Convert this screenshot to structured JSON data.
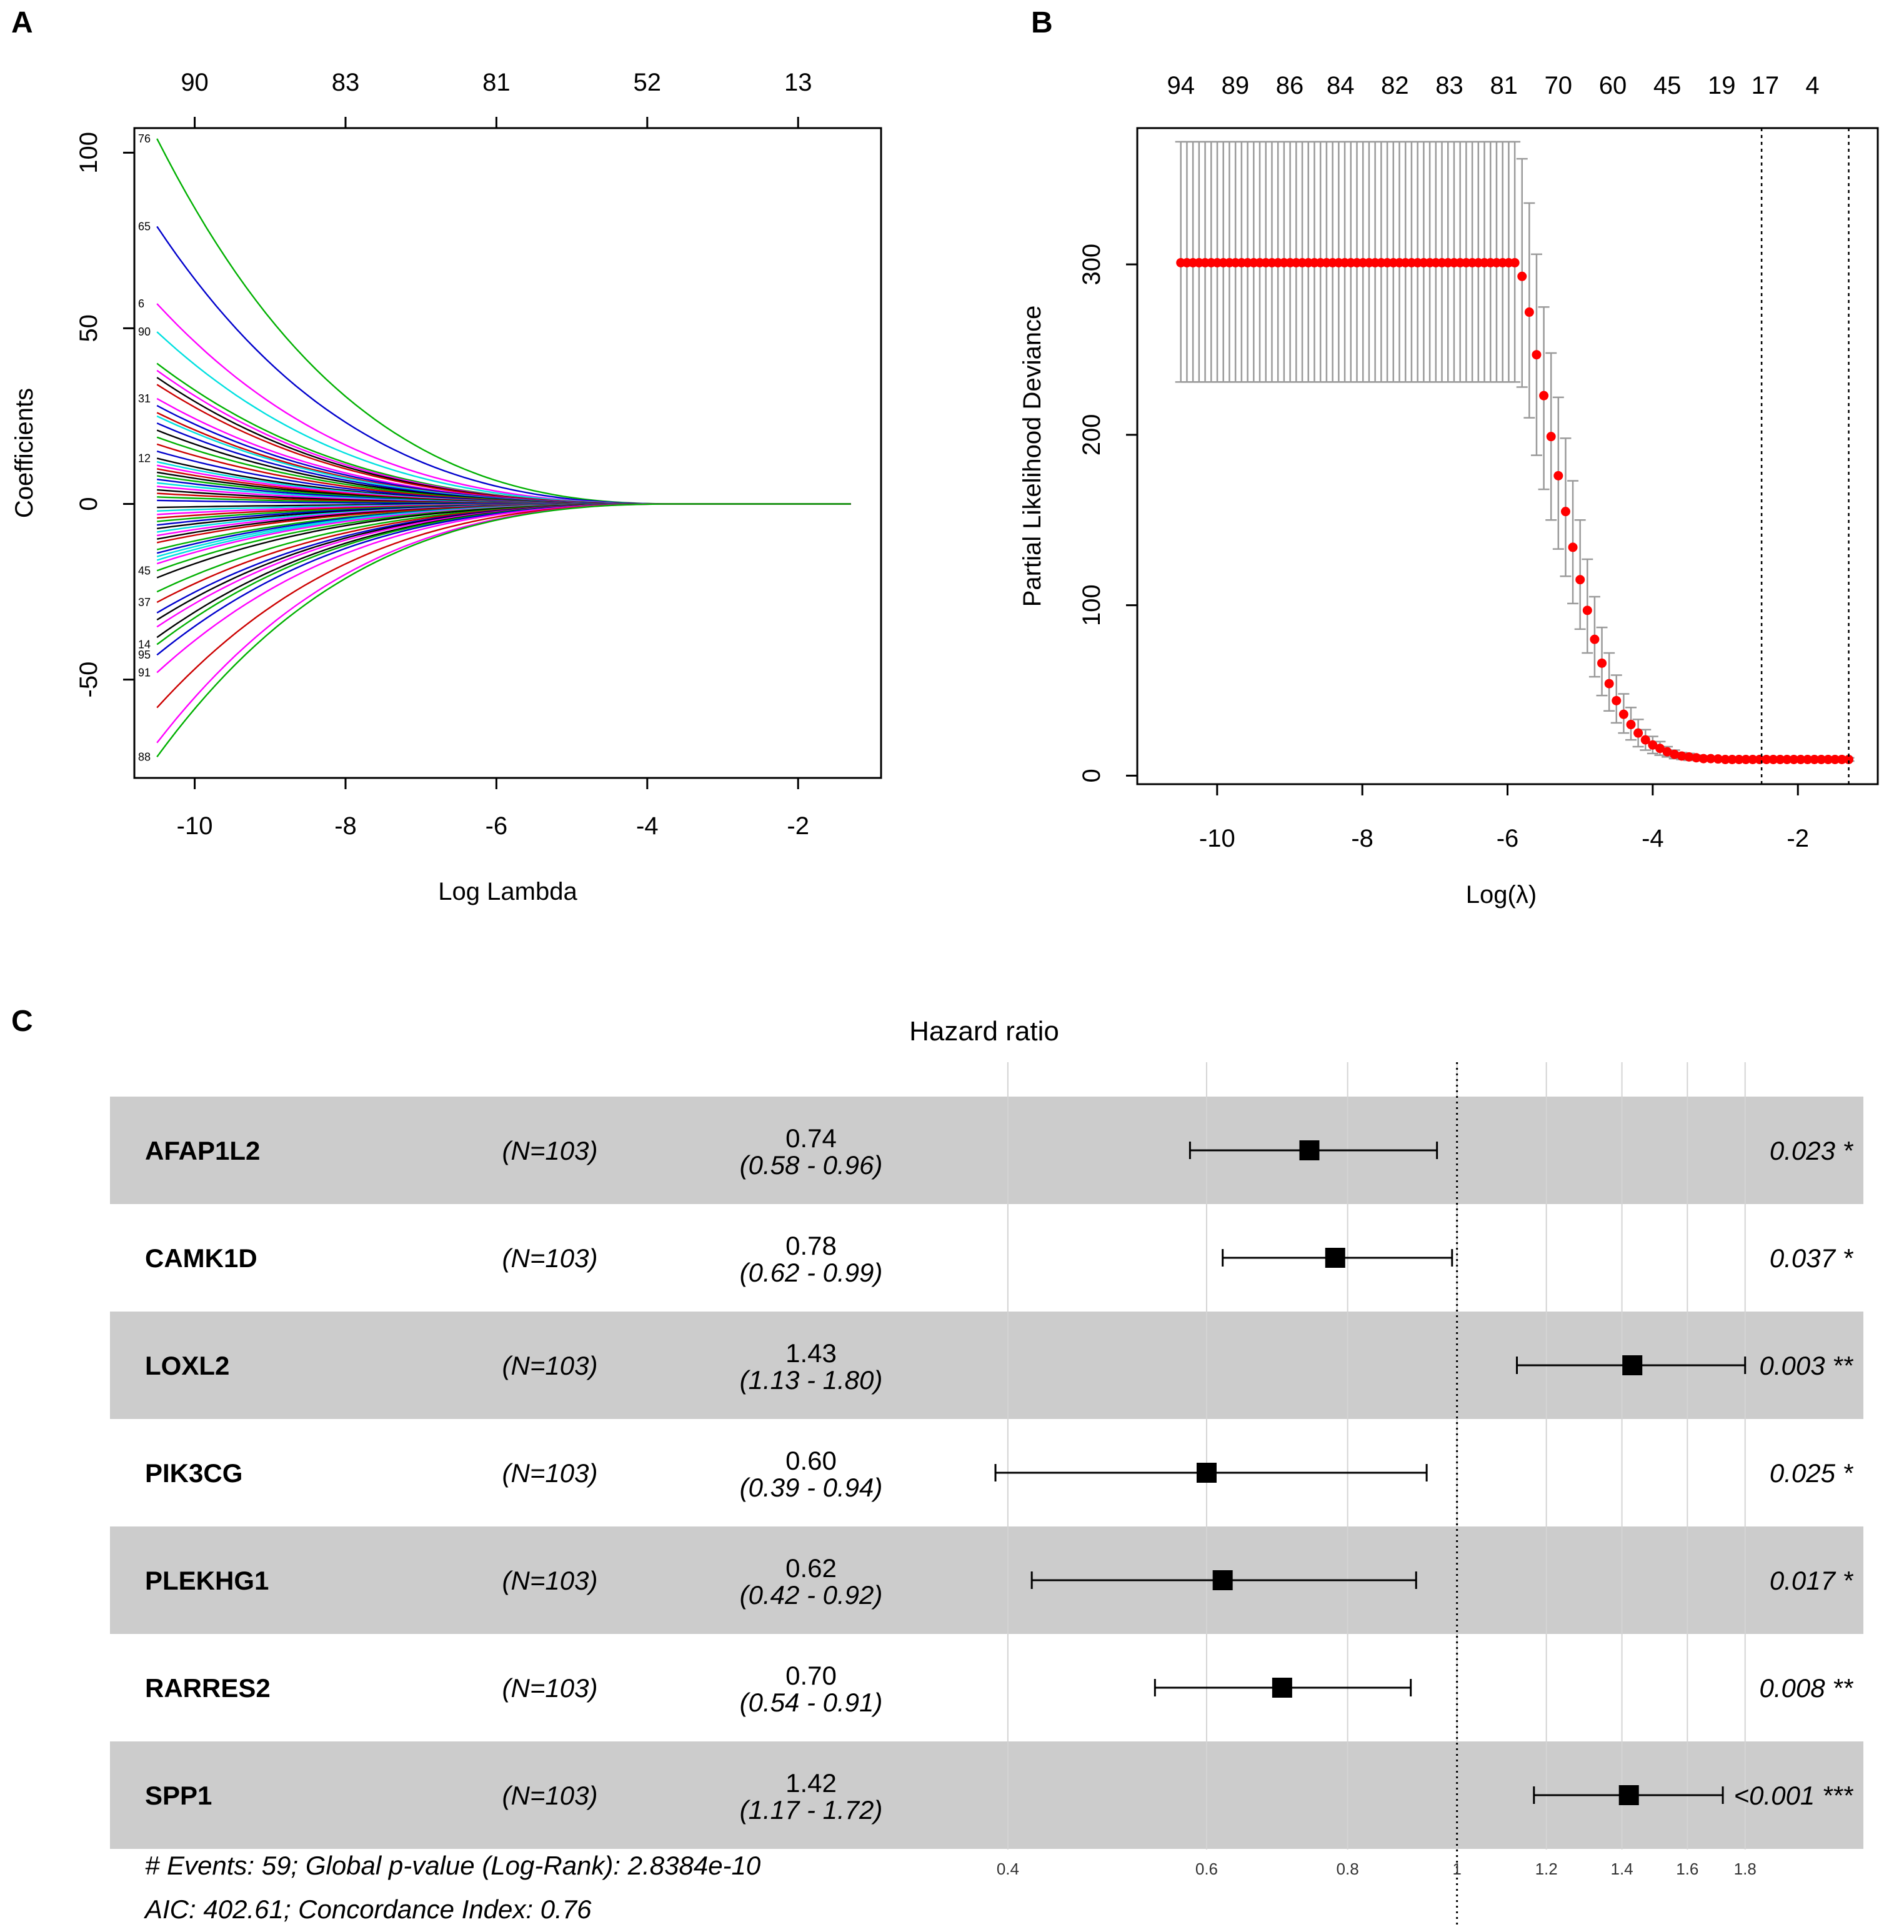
{
  "panels": {
    "a": "A",
    "b": "B",
    "c": "C"
  },
  "chart_data": [
    {
      "type": "line",
      "panel": "A",
      "title": "",
      "xlabel": "Log Lambda",
      "ylabel": "Coefficients",
      "xlim": [
        -10.8,
        -0.9
      ],
      "ylim": [
        -78,
        107
      ],
      "x_ticks": [
        -10,
        -8,
        -6,
        -4,
        -2
      ],
      "y_ticks": [
        -50,
        0,
        50,
        100
      ],
      "top_ticks": {
        "x": [
          -10,
          -8,
          -6,
          -4,
          -2
        ],
        "labels": [
          "90",
          "83",
          "81",
          "52",
          "13"
        ]
      },
      "series_note": "coefficient paths start at log lambda -10.5 and shrink to 0 by about -3.5",
      "path_start_x": -10.5,
      "path_end_x": -1.3,
      "path_shrink_zero_x": -3.5,
      "series_start_values": [
        104,
        79,
        57,
        49,
        40,
        38,
        36,
        34,
        30,
        28,
        26,
        25,
        23,
        21,
        19,
        17,
        15,
        13,
        12,
        11,
        10,
        9,
        8,
        7,
        6,
        5,
        4,
        3,
        2,
        1,
        -1,
        -2,
        -3,
        -4,
        -5,
        -6,
        -7,
        -8,
        -9,
        -10,
        -11,
        -13,
        -14,
        -15,
        -16,
        -17,
        -19,
        -21,
        -25,
        -28,
        -31,
        -33,
        -35,
        -38,
        -40,
        -43,
        -48,
        -58,
        -68,
        -72
      ],
      "series_colors": [
        "#00b000",
        "#0000cc",
        "#ff00ff",
        "#00e0e0",
        "#00b000",
        "#ff00ff",
        "#000000",
        "#cc0000",
        "#ff00ff",
        "#0000cc",
        "#cc0000",
        "#00e0e0",
        "#0000cc",
        "#000000",
        "#00b000",
        "#cc0000",
        "#0000cc",
        "#000000",
        "#00e0e0",
        "#ff00ff",
        "#cc0000",
        "#000000",
        "#00b000",
        "#0000cc",
        "#00e0e0",
        "#ff00ff",
        "#000000",
        "#cc0000",
        "#00b000",
        "#0000cc",
        "#000000",
        "#00e0e0",
        "#ff00ff",
        "#cc0000",
        "#00b000",
        "#0000cc",
        "#000000",
        "#00e0e0",
        "#ff00ff",
        "#000000",
        "#cc0000",
        "#00b000",
        "#0000cc",
        "#00e0e0",
        "#00e0e0",
        "#ff00ff",
        "#00b000",
        "#000000",
        "#00b000",
        "#cc0000",
        "#0000cc",
        "#000000",
        "#ff00ff",
        "#000000",
        "#00b000",
        "#0000cc",
        "#ff00ff",
        "#cc0000",
        "#ff00ff",
        "#00b000"
      ],
      "left_labels": [
        "76",
        "65",
        "6",
        "90",
        "31",
        "12",
        "45",
        "37",
        "88",
        "91",
        "95",
        "14"
      ]
    },
    {
      "type": "scatter",
      "panel": "B",
      "title": "",
      "xlabel": "Log(λ)",
      "ylabel": "Partial Likelihood Deviance",
      "xlim": [
        -11.1,
        -0.9
      ],
      "ylim": [
        -5,
        380
      ],
      "x_ticks": [
        -10,
        -8,
        -6,
        -4,
        -2
      ],
      "y_ticks": [
        0,
        100,
        200,
        300
      ],
      "top_ticks": {
        "x": [
          -10.5,
          -9.75,
          -9.0,
          -8.3,
          -7.55,
          -6.8,
          -6.05,
          -5.3,
          -4.55,
          -3.8,
          -3.05,
          -2.45,
          -1.8
        ],
        "labels": [
          "94",
          "89",
          "86",
          "84",
          "82",
          "83",
          "81",
          "70",
          "60",
          "45",
          "19",
          "17",
          "4"
        ]
      },
      "vlines": [
        -2.5,
        -1.3
      ],
      "plateau": {
        "x_from": -10.5,
        "x_to": -5.9,
        "mean": 301,
        "lower": 231,
        "upper": 372
      },
      "points": [
        [
          -5.8,
          293,
          228,
          362
        ],
        [
          -5.7,
          272,
          210,
          336
        ],
        [
          -5.6,
          247,
          188,
          306
        ],
        [
          -5.5,
          223,
          168,
          275
        ],
        [
          -5.4,
          199,
          150,
          248
        ],
        [
          -5.3,
          176,
          133,
          222
        ],
        [
          -5.2,
          155,
          117,
          198
        ],
        [
          -5.1,
          134,
          101,
          173
        ],
        [
          -5.0,
          115,
          86,
          150
        ],
        [
          -4.9,
          97,
          72,
          127
        ],
        [
          -4.8,
          80,
          58,
          105
        ],
        [
          -4.7,
          66,
          47,
          87
        ],
        [
          -4.6,
          54,
          38,
          72
        ],
        [
          -4.5,
          44,
          31,
          59
        ],
        [
          -4.4,
          36,
          25,
          48
        ],
        [
          -4.3,
          30,
          21,
          40
        ],
        [
          -4.2,
          25,
          17,
          33
        ],
        [
          -4.1,
          21,
          15,
          27
        ],
        [
          -4.0,
          18,
          13,
          23
        ],
        [
          -3.9,
          16,
          12,
          20
        ],
        [
          -3.8,
          14,
          11,
          17
        ],
        [
          -3.7,
          12.5,
          10,
          15
        ],
        [
          -3.6,
          11.5,
          9.5,
          13.5
        ],
        [
          -3.5,
          11,
          9,
          13
        ],
        [
          -3.4,
          10.5,
          9,
          12
        ],
        [
          -3.3,
          10,
          8.8,
          11.5
        ],
        [
          -3.2,
          10,
          8.8,
          11.2
        ],
        [
          -3.1,
          9.8,
          8.7,
          11
        ]
      ],
      "tail": {
        "x_from": -3.0,
        "x_to": -1.3,
        "mean": 9.5,
        "lower": 8.5,
        "upper": 10.5
      }
    },
    {
      "type": "forest",
      "panel": "C",
      "title": "Hazard ratio",
      "log_scale": true,
      "xlim": [
        0.33,
        2.3
      ],
      "x_ticks": [
        0.4,
        0.6,
        0.8,
        1,
        1.2,
        1.4,
        1.6,
        1.8
      ],
      "x_tick_labels": [
        "0.4",
        "0.6",
        "0.8",
        "1",
        "1.2",
        "1.4",
        "1.6",
        "1.8"
      ],
      "reference_line": 1,
      "rows": [
        {
          "gene": "AFAP1L2",
          "n": "(N=103)",
          "hr_label": "0.74",
          "ci_label": "(0.58 - 0.96)",
          "p": "0.023 *",
          "hr": 0.74,
          "lo": 0.58,
          "hi": 0.96
        },
        {
          "gene": "CAMK1D",
          "n": "(N=103)",
          "hr_label": "0.78",
          "ci_label": "(0.62 - 0.99)",
          "p": "0.037 *",
          "hr": 0.78,
          "lo": 0.62,
          "hi": 0.99
        },
        {
          "gene": "LOXL2",
          "n": "(N=103)",
          "hr_label": "1.43",
          "ci_label": "(1.13 - 1.80)",
          "p": "0.003 **",
          "hr": 1.43,
          "lo": 1.13,
          "hi": 1.8
        },
        {
          "gene": "PIK3CG",
          "n": "(N=103)",
          "hr_label": "0.60",
          "ci_label": "(0.39 - 0.94)",
          "p": "0.025 *",
          "hr": 0.6,
          "lo": 0.39,
          "hi": 0.94
        },
        {
          "gene": "PLEKHG1",
          "n": "(N=103)",
          "hr_label": "0.62",
          "ci_label": "(0.42 - 0.92)",
          "p": "0.017 *",
          "hr": 0.62,
          "lo": 0.42,
          "hi": 0.92
        },
        {
          "gene": "RARRES2",
          "n": "(N=103)",
          "hr_label": "0.70",
          "ci_label": "(0.54 - 0.91)",
          "p": "0.008 **",
          "hr": 0.7,
          "lo": 0.54,
          "hi": 0.91
        },
        {
          "gene": "SPP1",
          "n": "(N=103)",
          "hr_label": "1.42",
          "ci_label": "(1.17 - 1.72)",
          "p": "<0.001 ***",
          "hr": 1.42,
          "lo": 1.17,
          "hi": 1.72
        }
      ],
      "footer": [
        "# Events: 59; Global p-value (Log-Rank): 2.8384e-10",
        "AIC: 402.61; Concordance Index: 0.76"
      ]
    }
  ]
}
